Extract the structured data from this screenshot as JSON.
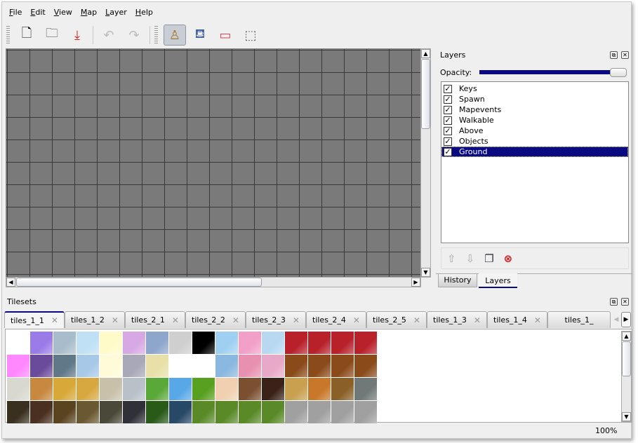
{
  "menu": [
    "File",
    "Edit",
    "View",
    "Map",
    "Layer",
    "Help"
  ],
  "toolbar": {
    "icons": [
      "new-icon",
      "open-icon",
      "save-icon",
      "undo-icon",
      "redo-icon",
      "stamp-brush-icon",
      "bucket-fill-icon",
      "eraser-icon",
      "rect-select-icon"
    ],
    "glyphs": [
      "🗋",
      "🗀",
      "⤓",
      "↶",
      "↷",
      "♙",
      "⛾",
      "▭",
      "⬚"
    ],
    "active": "stamp-brush-icon"
  },
  "layers": {
    "title": "Layers",
    "opacity_label": "Opacity:",
    "opacity": 1.0,
    "items": [
      {
        "name": "Keys",
        "visible": true
      },
      {
        "name": "Spawn",
        "visible": true
      },
      {
        "name": "Mapevents",
        "visible": true
      },
      {
        "name": "Walkable",
        "visible": true
      },
      {
        "name": "Above",
        "visible": true
      },
      {
        "name": "Objects",
        "visible": true
      },
      {
        "name": "Ground",
        "visible": true,
        "selected": true
      }
    ],
    "buttons": {
      "raise": "⇧",
      "lower": "⇩",
      "duplicate": "❐",
      "remove": "⊗"
    },
    "tabs": [
      "History",
      "Layers"
    ],
    "active_tab": "Layers"
  },
  "tilesets": {
    "title": "Tilesets",
    "tabs": [
      "tiles_1_1",
      "tiles_1_2",
      "tiles_2_1",
      "tiles_2_2",
      "tiles_2_3",
      "tiles_2_4",
      "tiles_2_5",
      "tiles_1_3",
      "tiles_1_4",
      "tiles_1_"
    ],
    "active_tab": "tiles_1_1",
    "tile_colors": [
      "#ffffff",
      "#9a7be8",
      "#a9bccb",
      "#bfe0f5",
      "#fffbc8",
      "#d8a8e4",
      "#8ea6cc",
      "#cfcfcf",
      "#000000",
      "#9fd0f2",
      "#f2a0c8",
      "#b8d8f2",
      "#b8202a",
      "#b8202a",
      "#b8202a",
      "#b8202a",
      "#ff88ff",
      "#6a4a9a",
      "#607888",
      "#a8c8e8",
      "#fffbd8",
      "#a8a8b8",
      "#e8e0a8",
      "#ffffff",
      "#ffffff",
      "#8ab8e0",
      "#e890b0",
      "#e8a8c8",
      "#8a4a1a",
      "#8a4a1a",
      "#8a4a1a",
      "#8a4a1a",
      "#d8d8d0",
      "#c88840",
      "#d8a838",
      "#d8a840",
      "#c8c0a8",
      "#b8c0c8",
      "#5aa838",
      "#58a8e8",
      "#58a020",
      "#f0d0b0",
      "#7a5030",
      "#3a2218",
      "#c8a050",
      "#c87828",
      "#8a6028",
      "#707878",
      "#3a3020",
      "#4a3020",
      "#5a4420",
      "#6a5830",
      "#4a4838",
      "#303038",
      "#2a5a18",
      "#284868",
      "#5a8a28",
      "#5a8a28",
      "#5a8a28",
      "#5a8a28",
      "#a0a0a0",
      "#a0a0a0",
      "#a0a0a0",
      "#a0a0a0"
    ]
  },
  "status": {
    "zoom": "100%"
  }
}
